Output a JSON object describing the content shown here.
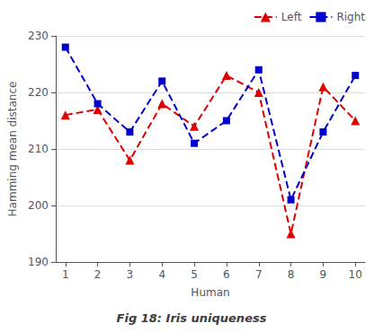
{
  "chart_data": {
    "type": "line",
    "title": "Fig 18: Iris uniqueness",
    "xlabel": "Human",
    "ylabel": "Hamming mean distance",
    "x": [
      1,
      2,
      3,
      4,
      5,
      6,
      7,
      8,
      9,
      10
    ],
    "series": [
      {
        "name": "Left",
        "color": "#dd0000",
        "marker": "triangle",
        "line_style": "dashed",
        "values": [
          216,
          217,
          208,
          218,
          214,
          223,
          220,
          195,
          221,
          215
        ]
      },
      {
        "name": "Right",
        "color": "#0000cc",
        "marker": "square",
        "line_style": "dashed",
        "values": [
          228,
          218,
          213,
          222,
          211,
          215,
          224,
          201,
          213,
          223
        ]
      }
    ],
    "xlim": [
      0.7,
      10.3
    ],
    "xticks": [
      1,
      2,
      3,
      4,
      5,
      6,
      7,
      8,
      9,
      10
    ],
    "ylim": [
      190,
      230
    ],
    "yticks": [
      190,
      200,
      210,
      220,
      230
    ],
    "grid": "y",
    "legend": "upper right"
  }
}
